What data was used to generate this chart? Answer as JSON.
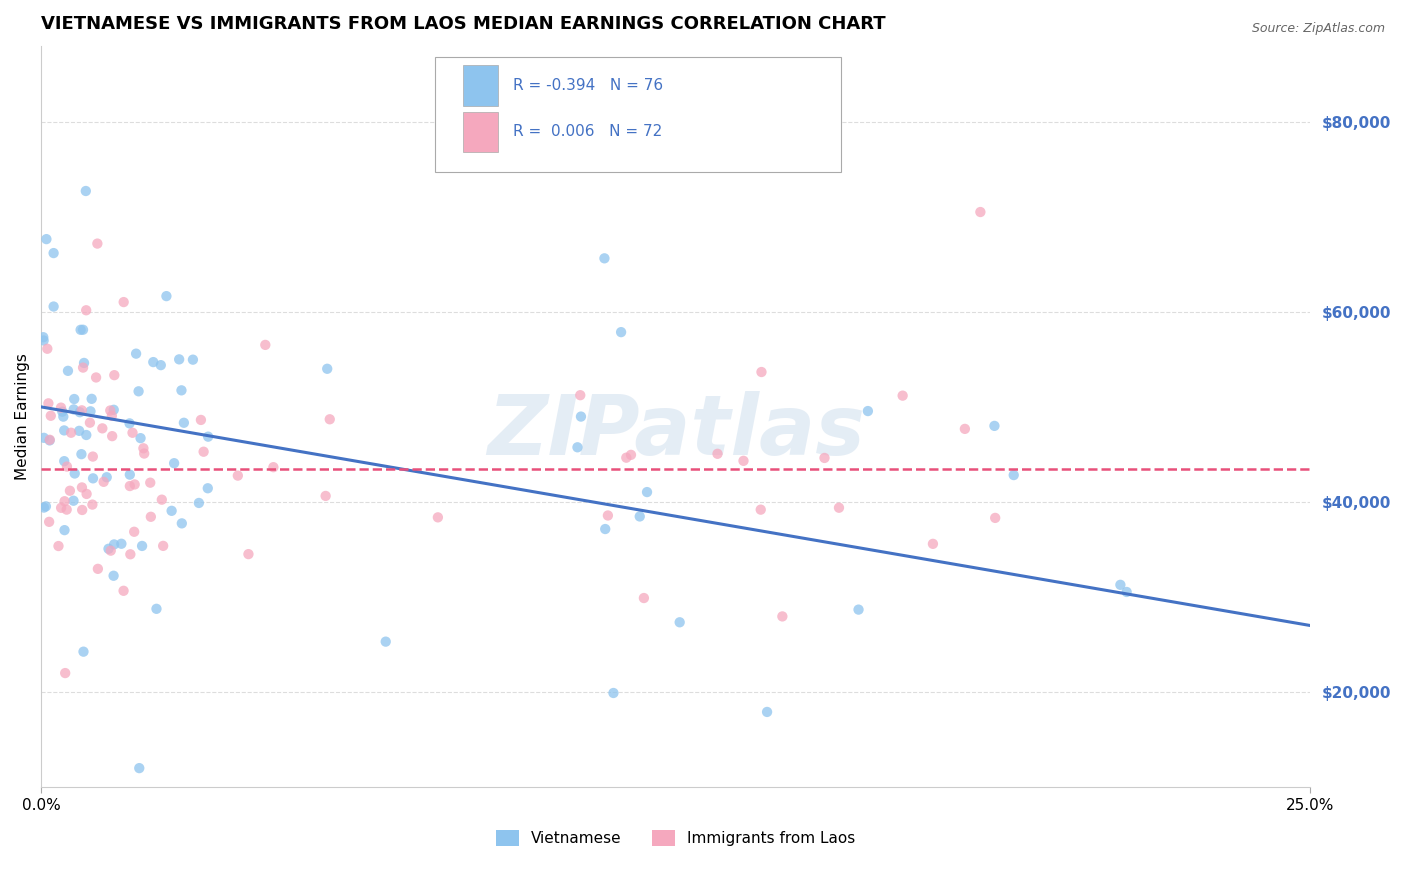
{
  "title": "VIETNAMESE VS IMMIGRANTS FROM LAOS MEDIAN EARNINGS CORRELATION CHART",
  "source": "Source: ZipAtlas.com",
  "ylabel": "Median Earnings",
  "yticks": [
    20000,
    40000,
    60000,
    80000
  ],
  "ytick_labels": [
    "$20,000",
    "$40,000",
    "$60,000",
    "$80,000"
  ],
  "xmin": 0.0,
  "xmax": 0.25,
  "ymin": 10000,
  "ymax": 88000,
  "color_vietnamese": "#8EC4EE",
  "color_laos": "#F5A8BE",
  "line_color_vietnamese": "#4472C4",
  "line_color_laos": "#E8507A",
  "tick_color": "#4472C4",
  "background_color": "#FFFFFF",
  "grid_color": "#DDDDDD",
  "watermark": "ZIPatlas",
  "title_fontsize": 13,
  "label_fontsize": 11,
  "tick_fontsize": 11,
  "scatter_alpha": 0.75,
  "scatter_size": 55,
  "legend_text1": "R = -0.394   N = 76",
  "legend_text2": "R =  0.006   N = 72",
  "viet_line_x0": 0.0,
  "viet_line_y0": 50000,
  "viet_line_x1": 0.25,
  "viet_line_y1": 27000,
  "laos_line_y": 43500,
  "bottom_legend_viet": "Vietnamese",
  "bottom_legend_laos": "Immigrants from Laos"
}
